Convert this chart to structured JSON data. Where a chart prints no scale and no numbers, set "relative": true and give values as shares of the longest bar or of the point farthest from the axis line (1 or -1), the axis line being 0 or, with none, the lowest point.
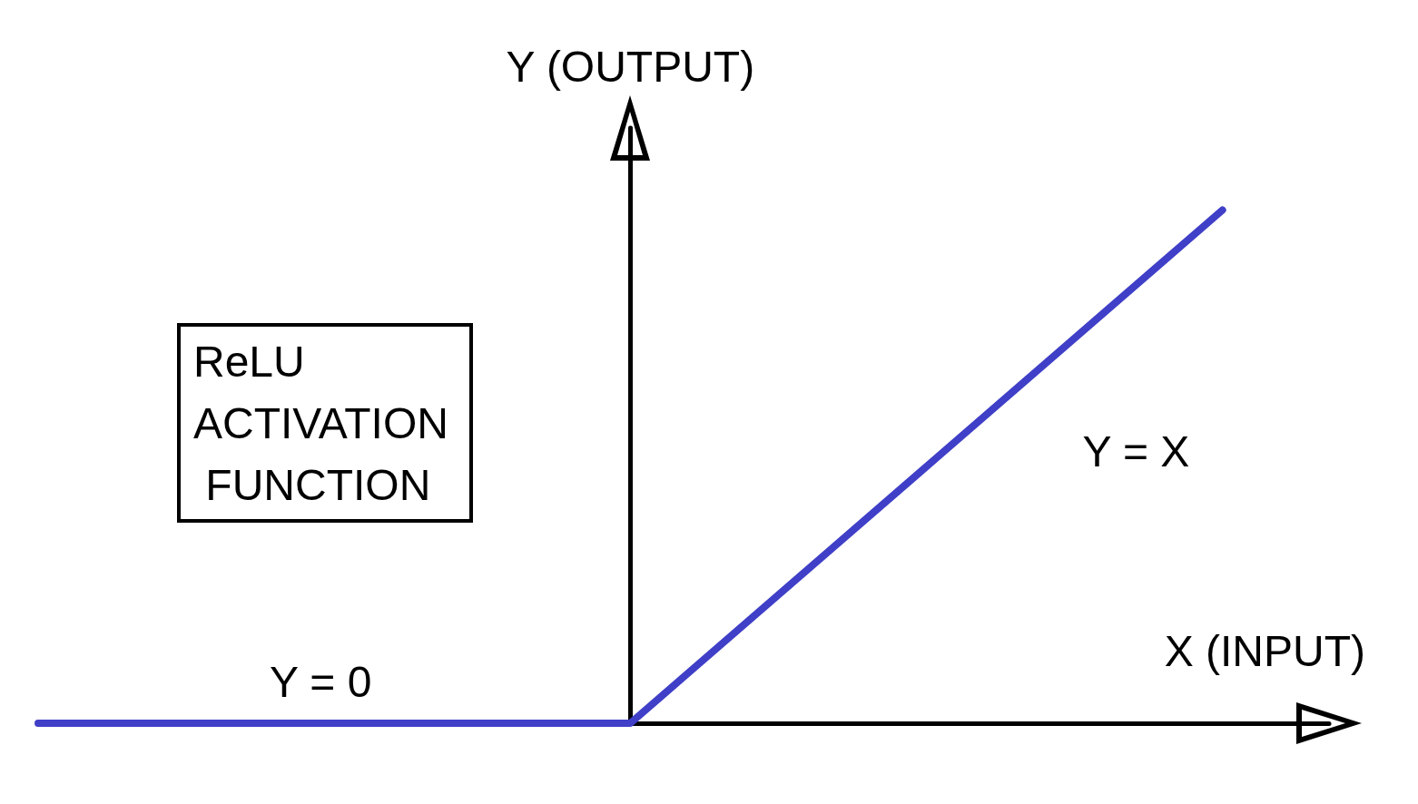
{
  "chart_data": {
    "type": "line",
    "title": "ReLU ACTIVATION FUNCTION",
    "xlabel": "X (INPUT)",
    "ylabel": "Y (OUTPUT)",
    "annotations": [
      "Y = 0",
      "Y = X"
    ],
    "categories": [
      null,
      null,
      null
    ],
    "values": [
      0,
      0,
      1
    ],
    "color": "#3f3fc8",
    "relative": true,
    "marker": "none",
    "line_style": "solid"
  }
}
